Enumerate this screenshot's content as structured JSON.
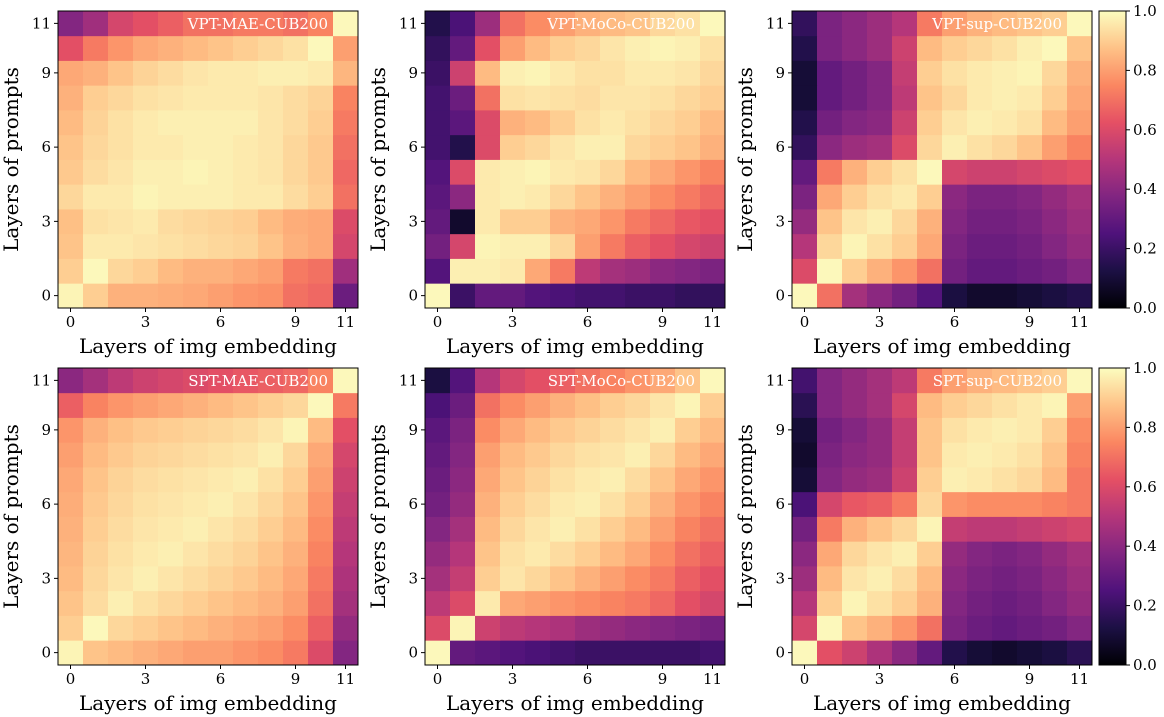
{
  "chart_data": [
    {
      "type": "heatmap",
      "title": "VPT-MAE-CUB200",
      "xlabel": "Layers of img embedding",
      "ylabel": "Layers of prompts",
      "xticks": [
        "0",
        "3",
        "6",
        "9",
        "11"
      ],
      "yticks": [
        "0",
        "3",
        "6",
        "9",
        "11"
      ],
      "vmin": 0,
      "vmax": 1,
      "colormap": "magma",
      "z": [
        [
          0.98,
          0.9,
          0.84,
          0.84,
          0.83,
          0.82,
          0.8,
          0.78,
          0.77,
          0.7,
          0.68,
          0.32
        ],
        [
          0.9,
          0.99,
          0.92,
          0.9,
          0.86,
          0.84,
          0.84,
          0.82,
          0.8,
          0.72,
          0.7,
          0.45
        ],
        [
          0.88,
          0.96,
          0.96,
          0.95,
          0.94,
          0.93,
          0.92,
          0.91,
          0.88,
          0.84,
          0.82,
          0.58
        ],
        [
          0.87,
          0.94,
          0.95,
          0.96,
          0.93,
          0.92,
          0.91,
          0.9,
          0.86,
          0.83,
          0.82,
          0.6
        ],
        [
          0.92,
          0.96,
          0.96,
          0.98,
          0.97,
          0.97,
          0.97,
          0.96,
          0.96,
          0.93,
          0.9,
          0.7
        ],
        [
          0.89,
          0.93,
          0.95,
          0.97,
          0.97,
          0.98,
          0.97,
          0.96,
          0.95,
          0.92,
          0.89,
          0.68
        ],
        [
          0.88,
          0.92,
          0.94,
          0.96,
          0.96,
          0.97,
          0.97,
          0.96,
          0.95,
          0.92,
          0.89,
          0.7
        ],
        [
          0.86,
          0.91,
          0.94,
          0.96,
          0.97,
          0.97,
          0.97,
          0.97,
          0.95,
          0.93,
          0.9,
          0.72
        ],
        [
          0.84,
          0.9,
          0.92,
          0.94,
          0.95,
          0.96,
          0.96,
          0.96,
          0.95,
          0.93,
          0.91,
          0.74
        ],
        [
          0.82,
          0.84,
          0.88,
          0.91,
          0.93,
          0.95,
          0.96,
          0.96,
          0.97,
          0.97,
          0.96,
          0.85
        ],
        [
          0.62,
          0.72,
          0.78,
          0.82,
          0.84,
          0.86,
          0.88,
          0.9,
          0.92,
          0.94,
          0.99,
          0.8
        ],
        [
          0.38,
          0.45,
          0.58,
          0.62,
          0.66,
          0.7,
          0.7,
          0.72,
          0.72,
          0.7,
          0.74,
          0.99
        ]
      ]
    },
    {
      "type": "heatmap",
      "title": "VPT-MoCo-CUB200",
      "xlabel": "Layers of img embedding",
      "ylabel": "Layers of prompts",
      "xticks": [
        "0",
        "3",
        "6",
        "9",
        "11"
      ],
      "yticks": [
        "0",
        "3",
        "6",
        "9",
        "11"
      ],
      "vmin": 0,
      "vmax": 1,
      "colormap": "magma",
      "z": [
        [
          0.99,
          0.2,
          0.3,
          0.3,
          0.26,
          0.24,
          0.22,
          0.22,
          0.2,
          0.2,
          0.18,
          0.18
        ],
        [
          0.26,
          0.97,
          0.97,
          0.96,
          0.82,
          0.72,
          0.52,
          0.46,
          0.44,
          0.4,
          0.38,
          0.36
        ],
        [
          0.34,
          0.58,
          0.98,
          0.97,
          0.97,
          0.92,
          0.8,
          0.72,
          0.66,
          0.62,
          0.58,
          0.56
        ],
        [
          0.3,
          0.08,
          0.96,
          0.9,
          0.9,
          0.84,
          0.82,
          0.78,
          0.72,
          0.68,
          0.64,
          0.62
        ],
        [
          0.28,
          0.4,
          0.96,
          0.97,
          0.96,
          0.92,
          0.88,
          0.84,
          0.8,
          0.76,
          0.72,
          0.68
        ],
        [
          0.26,
          0.6,
          0.96,
          0.97,
          0.98,
          0.96,
          0.95,
          0.92,
          0.86,
          0.82,
          0.78,
          0.74
        ],
        [
          0.22,
          0.14,
          0.6,
          0.9,
          0.92,
          0.95,
          0.97,
          0.97,
          0.92,
          0.9,
          0.88,
          0.84
        ],
        [
          0.22,
          0.28,
          0.6,
          0.84,
          0.86,
          0.9,
          0.94,
          0.96,
          0.94,
          0.92,
          0.9,
          0.86
        ],
        [
          0.22,
          0.32,
          0.7,
          0.94,
          0.95,
          0.94,
          0.93,
          0.95,
          0.95,
          0.94,
          0.92,
          0.9
        ],
        [
          0.2,
          0.56,
          0.86,
          0.97,
          0.98,
          0.96,
          0.94,
          0.94,
          0.96,
          0.96,
          0.95,
          0.92
        ],
        [
          0.18,
          0.3,
          0.62,
          0.8,
          0.86,
          0.9,
          0.92,
          0.95,
          0.97,
          0.98,
          0.97,
          0.94
        ],
        [
          0.14,
          0.24,
          0.44,
          0.7,
          0.76,
          0.8,
          0.84,
          0.86,
          0.88,
          0.92,
          0.94,
          0.99
        ]
      ]
    },
    {
      "type": "heatmap",
      "title": "VPT-sup-CUB200",
      "xlabel": "Layers of img embedding",
      "ylabel": "Layers of prompts",
      "xticks": [
        "0",
        "3",
        "6",
        "9",
        "11"
      ],
      "yticks": [
        "0",
        "3",
        "6",
        "9",
        "11"
      ],
      "vmin": 0,
      "vmax": 1,
      "colormap": "magma",
      "z": [
        [
          0.99,
          0.7,
          0.46,
          0.4,
          0.34,
          0.26,
          0.12,
          0.08,
          0.08,
          0.1,
          0.12,
          0.14
        ],
        [
          0.6,
          0.99,
          0.9,
          0.84,
          0.78,
          0.7,
          0.34,
          0.3,
          0.3,
          0.32,
          0.34,
          0.38
        ],
        [
          0.5,
          0.92,
          0.98,
          0.94,
          0.9,
          0.82,
          0.36,
          0.32,
          0.32,
          0.34,
          0.38,
          0.42
        ],
        [
          0.42,
          0.88,
          0.95,
          0.97,
          0.92,
          0.84,
          0.38,
          0.34,
          0.34,
          0.36,
          0.4,
          0.44
        ],
        [
          0.36,
          0.82,
          0.9,
          0.94,
          0.96,
          0.9,
          0.4,
          0.36,
          0.36,
          0.38,
          0.42,
          0.46
        ],
        [
          0.3,
          0.72,
          0.84,
          0.9,
          0.94,
          0.99,
          0.58,
          0.56,
          0.56,
          0.58,
          0.6,
          0.62
        ],
        [
          0.18,
          0.4,
          0.44,
          0.46,
          0.6,
          0.92,
          0.97,
          0.94,
          0.92,
          0.88,
          0.8,
          0.74
        ],
        [
          0.14,
          0.34,
          0.38,
          0.4,
          0.56,
          0.9,
          0.95,
          0.97,
          0.96,
          0.94,
          0.86,
          0.8
        ],
        [
          0.1,
          0.3,
          0.34,
          0.38,
          0.52,
          0.88,
          0.92,
          0.96,
          0.97,
          0.96,
          0.9,
          0.82
        ],
        [
          0.1,
          0.3,
          0.34,
          0.38,
          0.54,
          0.9,
          0.94,
          0.96,
          0.97,
          0.98,
          0.92,
          0.84
        ],
        [
          0.14,
          0.36,
          0.4,
          0.44,
          0.56,
          0.86,
          0.9,
          0.92,
          0.94,
          0.97,
          0.99,
          0.88
        ],
        [
          0.18,
          0.36,
          0.4,
          0.44,
          0.5,
          0.72,
          0.8,
          0.84,
          0.86,
          0.88,
          0.9,
          0.99
        ]
      ]
    },
    {
      "type": "heatmap",
      "title": "SPT-MAE-CUB200",
      "xlabel": "Layers of img embedding",
      "ylabel": "Layers of prompts",
      "xticks": [
        "0",
        "3",
        "6",
        "9",
        "11"
      ],
      "yticks": [
        "0",
        "3",
        "6",
        "9",
        "11"
      ],
      "vmin": 0,
      "vmax": 1,
      "colormap": "magma",
      "z": [
        [
          0.98,
          0.88,
          0.86,
          0.84,
          0.82,
          0.8,
          0.8,
          0.78,
          0.76,
          0.72,
          0.6,
          0.38
        ],
        [
          0.9,
          0.99,
          0.92,
          0.9,
          0.88,
          0.86,
          0.84,
          0.82,
          0.8,
          0.76,
          0.66,
          0.42
        ],
        [
          0.88,
          0.93,
          0.97,
          0.94,
          0.92,
          0.9,
          0.88,
          0.86,
          0.84,
          0.8,
          0.7,
          0.46
        ],
        [
          0.86,
          0.92,
          0.95,
          0.97,
          0.95,
          0.93,
          0.91,
          0.89,
          0.86,
          0.82,
          0.72,
          0.48
        ],
        [
          0.85,
          0.91,
          0.94,
          0.96,
          0.97,
          0.95,
          0.93,
          0.91,
          0.88,
          0.84,
          0.74,
          0.5
        ],
        [
          0.84,
          0.9,
          0.93,
          0.95,
          0.96,
          0.97,
          0.95,
          0.93,
          0.9,
          0.86,
          0.76,
          0.52
        ],
        [
          0.83,
          0.89,
          0.92,
          0.94,
          0.95,
          0.96,
          0.97,
          0.95,
          0.92,
          0.88,
          0.78,
          0.54
        ],
        [
          0.82,
          0.88,
          0.91,
          0.93,
          0.94,
          0.95,
          0.96,
          0.97,
          0.94,
          0.9,
          0.8,
          0.56
        ],
        [
          0.8,
          0.86,
          0.89,
          0.91,
          0.92,
          0.93,
          0.94,
          0.95,
          0.97,
          0.92,
          0.82,
          0.58
        ],
        [
          0.78,
          0.84,
          0.87,
          0.89,
          0.9,
          0.91,
          0.92,
          0.93,
          0.95,
          0.98,
          0.86,
          0.62
        ],
        [
          0.66,
          0.74,
          0.78,
          0.8,
          0.82,
          0.84,
          0.86,
          0.88,
          0.9,
          0.92,
          0.99,
          0.72
        ],
        [
          0.4,
          0.46,
          0.52,
          0.56,
          0.58,
          0.6,
          0.62,
          0.64,
          0.66,
          0.68,
          0.74,
          0.99
        ]
      ]
    },
    {
      "type": "heatmap",
      "title": "SPT-MoCo-CUB200",
      "xlabel": "Layers of img embedding",
      "ylabel": "Layers of prompts",
      "xticks": [
        "0",
        "3",
        "6",
        "9",
        "11"
      ],
      "yticks": [
        "0",
        "3",
        "6",
        "9",
        "11"
      ],
      "vmin": 0,
      "vmax": 1,
      "colormap": "magma",
      "z": [
        [
          0.99,
          0.3,
          0.28,
          0.26,
          0.24,
          0.22,
          0.2,
          0.2,
          0.2,
          0.2,
          0.2,
          0.22
        ],
        [
          0.6,
          0.98,
          0.56,
          0.52,
          0.5,
          0.48,
          0.44,
          0.42,
          0.4,
          0.38,
          0.36,
          0.34
        ],
        [
          0.52,
          0.6,
          0.96,
          0.82,
          0.8,
          0.78,
          0.76,
          0.74,
          0.72,
          0.68,
          0.62,
          0.58
        ],
        [
          0.46,
          0.54,
          0.9,
          0.95,
          0.92,
          0.88,
          0.84,
          0.8,
          0.76,
          0.72,
          0.66,
          0.62
        ],
        [
          0.42,
          0.5,
          0.88,
          0.94,
          0.96,
          0.93,
          0.9,
          0.86,
          0.82,
          0.76,
          0.7,
          0.66
        ],
        [
          0.38,
          0.46,
          0.86,
          0.92,
          0.95,
          0.97,
          0.94,
          0.9,
          0.86,
          0.8,
          0.74,
          0.7
        ],
        [
          0.34,
          0.42,
          0.84,
          0.9,
          0.93,
          0.96,
          0.97,
          0.94,
          0.9,
          0.84,
          0.78,
          0.74
        ],
        [
          0.32,
          0.4,
          0.82,
          0.88,
          0.91,
          0.94,
          0.96,
          0.97,
          0.93,
          0.88,
          0.82,
          0.78
        ],
        [
          0.3,
          0.38,
          0.8,
          0.86,
          0.89,
          0.92,
          0.94,
          0.95,
          0.97,
          0.92,
          0.86,
          0.82
        ],
        [
          0.28,
          0.36,
          0.76,
          0.82,
          0.86,
          0.89,
          0.91,
          0.93,
          0.95,
          0.97,
          0.9,
          0.86
        ],
        [
          0.24,
          0.32,
          0.7,
          0.76,
          0.8,
          0.84,
          0.87,
          0.9,
          0.92,
          0.95,
          0.98,
          0.9
        ],
        [
          0.12,
          0.26,
          0.5,
          0.58,
          0.62,
          0.66,
          0.7,
          0.74,
          0.78,
          0.82,
          0.88,
          0.99
        ]
      ]
    },
    {
      "type": "heatmap",
      "title": "SPT-sup-CUB200",
      "xlabel": "Layers of img embedding",
      "ylabel": "Layers of prompts",
      "xticks": [
        "0",
        "3",
        "6",
        "9",
        "11"
      ],
      "yticks": [
        "0",
        "3",
        "6",
        "9",
        "11"
      ],
      "vmin": 0,
      "vmax": 1,
      "colormap": "magma",
      "z": [
        [
          0.99,
          0.62,
          0.56,
          0.48,
          0.4,
          0.3,
          0.14,
          0.1,
          0.08,
          0.1,
          0.12,
          0.16
        ],
        [
          0.58,
          0.99,
          0.88,
          0.84,
          0.78,
          0.7,
          0.36,
          0.32,
          0.3,
          0.32,
          0.34,
          0.38
        ],
        [
          0.5,
          0.9,
          0.98,
          0.94,
          0.9,
          0.84,
          0.38,
          0.34,
          0.32,
          0.34,
          0.38,
          0.42
        ],
        [
          0.44,
          0.86,
          0.95,
          0.97,
          0.93,
          0.86,
          0.4,
          0.36,
          0.34,
          0.36,
          0.4,
          0.44
        ],
        [
          0.4,
          0.82,
          0.92,
          0.95,
          0.97,
          0.9,
          0.42,
          0.38,
          0.36,
          0.38,
          0.42,
          0.46
        ],
        [
          0.34,
          0.72,
          0.84,
          0.88,
          0.92,
          0.98,
          0.54,
          0.52,
          0.52,
          0.54,
          0.56,
          0.58
        ],
        [
          0.24,
          0.58,
          0.64,
          0.66,
          0.72,
          0.92,
          0.78,
          0.76,
          0.76,
          0.76,
          0.74,
          0.72
        ],
        [
          0.1,
          0.38,
          0.42,
          0.44,
          0.56,
          0.9,
          0.97,
          0.96,
          0.94,
          0.92,
          0.86,
          0.72
        ],
        [
          0.08,
          0.36,
          0.4,
          0.42,
          0.54,
          0.88,
          0.96,
          0.97,
          0.96,
          0.94,
          0.88,
          0.74
        ],
        [
          0.1,
          0.34,
          0.38,
          0.42,
          0.54,
          0.88,
          0.94,
          0.96,
          0.97,
          0.96,
          0.9,
          0.76
        ],
        [
          0.16,
          0.38,
          0.42,
          0.46,
          0.58,
          0.86,
          0.9,
          0.92,
          0.94,
          0.96,
          0.98,
          0.8
        ],
        [
          0.22,
          0.38,
          0.42,
          0.46,
          0.52,
          0.72,
          0.8,
          0.84,
          0.86,
          0.88,
          0.9,
          0.99
        ]
      ]
    }
  ],
  "colorbar": {
    "ticks": [
      "0.0",
      "0.2",
      "0.4",
      "0.6",
      "0.8",
      "1.0"
    ]
  }
}
